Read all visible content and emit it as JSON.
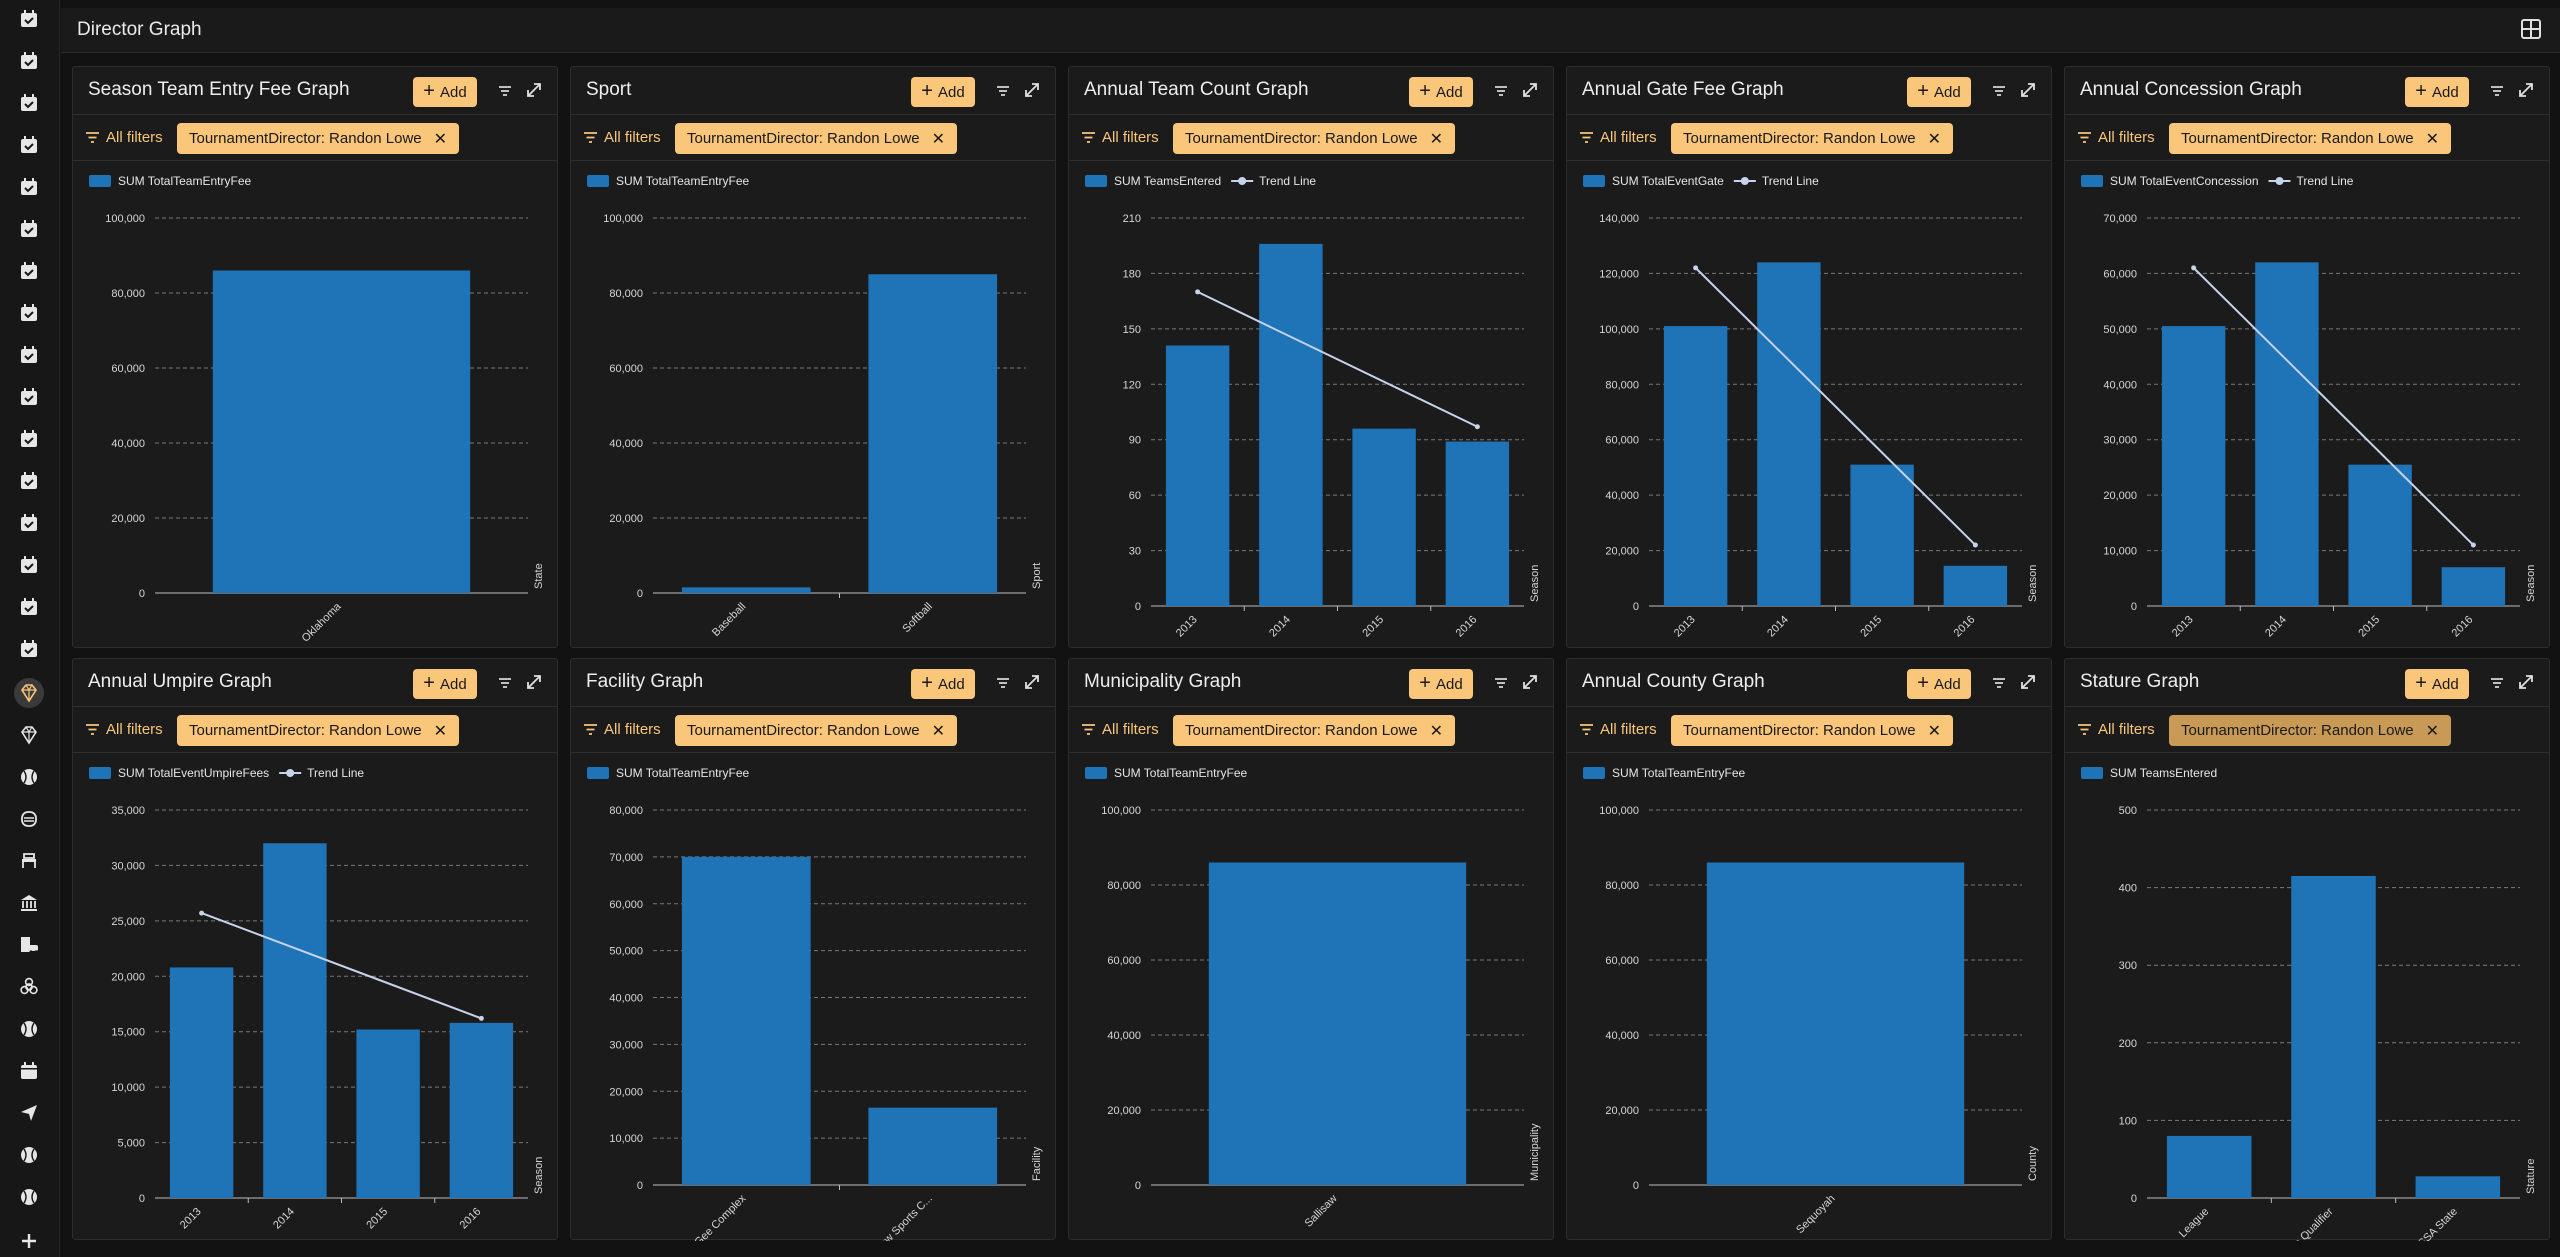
{
  "app": {
    "page_title": "Director Graph"
  },
  "sidebar": {
    "items": [
      {
        "icon": "calendar-check-icon"
      },
      {
        "icon": "calendar-check-icon"
      },
      {
        "icon": "calendar-check-icon"
      },
      {
        "icon": "calendar-check-icon"
      },
      {
        "icon": "calendar-check-icon"
      },
      {
        "icon": "calendar-check-icon"
      },
      {
        "icon": "calendar-check-icon"
      },
      {
        "icon": "calendar-check-icon"
      },
      {
        "icon": "calendar-check-icon"
      },
      {
        "icon": "calendar-check-icon"
      },
      {
        "icon": "calendar-check-icon"
      },
      {
        "icon": "calendar-check-icon"
      },
      {
        "icon": "calendar-check-icon"
      },
      {
        "icon": "calendar-check-icon"
      },
      {
        "icon": "calendar-check-icon"
      },
      {
        "icon": "calendar-check-icon"
      },
      {
        "icon": "diamond-icon",
        "active": true
      },
      {
        "icon": "diamond-icon"
      },
      {
        "icon": "baseball-icon"
      },
      {
        "icon": "mask-icon"
      },
      {
        "icon": "bench-icon"
      },
      {
        "icon": "bank-icon"
      },
      {
        "icon": "building-car-icon"
      },
      {
        "icon": "biohazard-icon"
      },
      {
        "icon": "baseball-icon"
      },
      {
        "icon": "calendar-icon"
      },
      {
        "icon": "send-icon"
      },
      {
        "icon": "baseball-icon"
      },
      {
        "icon": "baseball-icon"
      },
      {
        "icon": "plus-icon"
      }
    ]
  },
  "common": {
    "add_label": "Add",
    "all_filters_label": "All filters",
    "trend_label": "Trend Line",
    "bar_color": "#1f73b7",
    "trend_color": "#c6d3ea",
    "accent": "#f9c67a"
  },
  "panels": [
    {
      "title": "Season Team Entry Fee Graph",
      "filter_chip": "TournamentDirector: Randon Lowe"
    },
    {
      "title": "Sport",
      "filter_chip": "TournamentDirector: Randon Lowe"
    },
    {
      "title": "Annual Team Count Graph",
      "filter_chip": "TournamentDirector: Randon Lowe"
    },
    {
      "title": "Annual Gate Fee Graph",
      "filter_chip": "TournamentDirector: Randon Lowe"
    },
    {
      "title": "Annual Concession Graph",
      "filter_chip": "TournamentDirector: Randon Lowe"
    },
    {
      "title": "Annual Umpire Graph",
      "filter_chip": "TournamentDirector: Randon Lowe"
    },
    {
      "title": "Facility Graph",
      "filter_chip": "TournamentDirector: Randon Lowe"
    },
    {
      "title": "Municipality Graph",
      "filter_chip": "TournamentDirector: Randon Lowe"
    },
    {
      "title": "Annual County Graph",
      "filter_chip": "TournamentDirector: Randon Lowe"
    },
    {
      "title": "Stature Graph",
      "filter_chip": "TournamentDirector: Randon Lowe",
      "chip_dim": true
    }
  ],
  "chart_data": [
    {
      "type": "bar",
      "series": [
        {
          "name": "SUM TotalTeamEntryFee",
          "values": [
            86000
          ]
        }
      ],
      "categories": [
        "Oklahoma"
      ],
      "xlabel": "State",
      "ylim": [
        0,
        100000
      ],
      "yticks": [
        0,
        20000,
        40000,
        60000,
        80000,
        100000
      ],
      "trend": false,
      "grid": true
    },
    {
      "type": "bar",
      "series": [
        {
          "name": "SUM TotalTeamEntryFee",
          "values": [
            1500,
            85000
          ]
        }
      ],
      "categories": [
        "Baseball",
        "Softball"
      ],
      "xlabel": "Sport",
      "ylim": [
        0,
        100000
      ],
      "yticks": [
        0,
        20000,
        40000,
        60000,
        80000,
        100000
      ],
      "trend": false,
      "grid": true
    },
    {
      "type": "bar",
      "series": [
        {
          "name": "SUM TeamsEntered",
          "values": [
            141,
            196,
            96,
            89
          ]
        }
      ],
      "categories": [
        "2013",
        "2014",
        "2015",
        "2016"
      ],
      "xlabel": "Season",
      "ylim": [
        0,
        210
      ],
      "yticks": [
        0,
        30,
        60,
        90,
        120,
        150,
        180,
        210
      ],
      "trend": true,
      "trend_values": [
        170,
        97
      ],
      "grid": true
    },
    {
      "type": "bar",
      "series": [
        {
          "name": "SUM TotalEventGate",
          "values": [
            101000,
            124000,
            51000,
            14500
          ]
        }
      ],
      "categories": [
        "2013",
        "2014",
        "2015",
        "2016"
      ],
      "xlabel": "Season",
      "ylim": [
        0,
        140000
      ],
      "yticks": [
        0,
        20000,
        40000,
        60000,
        80000,
        100000,
        120000,
        140000
      ],
      "trend": true,
      "trend_values": [
        122000,
        22000
      ],
      "grid": true
    },
    {
      "type": "bar",
      "series": [
        {
          "name": "SUM TotalEventConcession",
          "values": [
            50500,
            62000,
            25500,
            7000
          ]
        }
      ],
      "categories": [
        "2013",
        "2014",
        "2015",
        "2016"
      ],
      "xlabel": "Season",
      "ylim": [
        0,
        70000
      ],
      "yticks": [
        0,
        10000,
        20000,
        30000,
        40000,
        50000,
        60000,
        70000
      ],
      "trend": true,
      "trend_values": [
        61000,
        11000
      ],
      "grid": true
    },
    {
      "type": "bar",
      "series": [
        {
          "name": "SUM TotalEventUmpireFees",
          "values": [
            20800,
            32000,
            15200,
            15800
          ]
        }
      ],
      "categories": [
        "2013",
        "2014",
        "2015",
        "2016"
      ],
      "xlabel": "Season",
      "ylim": [
        0,
        35000
      ],
      "yticks": [
        0,
        5000,
        10000,
        15000,
        20000,
        25000,
        30000,
        35000
      ],
      "trend": true,
      "trend_values": [
        25700,
        16200
      ],
      "grid": true
    },
    {
      "type": "bar",
      "series": [
        {
          "name": "SUM TotalTeamEntryFee",
          "values": [
            70000,
            16500
          ]
        }
      ],
      "categories": [
        "McGee Complex",
        "Sallisaw Sports C..."
      ],
      "xlabel": "Facility",
      "ylim": [
        0,
        80000
      ],
      "yticks": [
        0,
        10000,
        20000,
        30000,
        40000,
        50000,
        60000,
        70000,
        80000
      ],
      "trend": false,
      "grid": true
    },
    {
      "type": "bar",
      "series": [
        {
          "name": "SUM TotalTeamEntryFee",
          "values": [
            86000
          ]
        }
      ],
      "categories": [
        "Sallisaw"
      ],
      "xlabel": "Municipality",
      "ylim": [
        0,
        100000
      ],
      "yticks": [
        0,
        20000,
        40000,
        60000,
        80000,
        100000
      ],
      "trend": false,
      "grid": true
    },
    {
      "type": "bar",
      "series": [
        {
          "name": "SUM TotalTeamEntryFee",
          "values": [
            86000
          ]
        }
      ],
      "categories": [
        "Sequoyah"
      ],
      "xlabel": "County",
      "ylim": [
        0,
        100000
      ],
      "yticks": [
        0,
        20000,
        40000,
        60000,
        80000,
        100000
      ],
      "trend": false,
      "grid": true
    },
    {
      "type": "bar",
      "series": [
        {
          "name": "SUM TeamsEntered",
          "values": [
            80,
            415,
            28
          ]
        }
      ],
      "categories": [
        "League",
        "State Qualifier",
        "USSSA State"
      ],
      "xlabel": "Stature",
      "ylim": [
        0,
        500
      ],
      "yticks": [
        0,
        100,
        200,
        300,
        400,
        500
      ],
      "trend": false,
      "grid": true
    }
  ]
}
